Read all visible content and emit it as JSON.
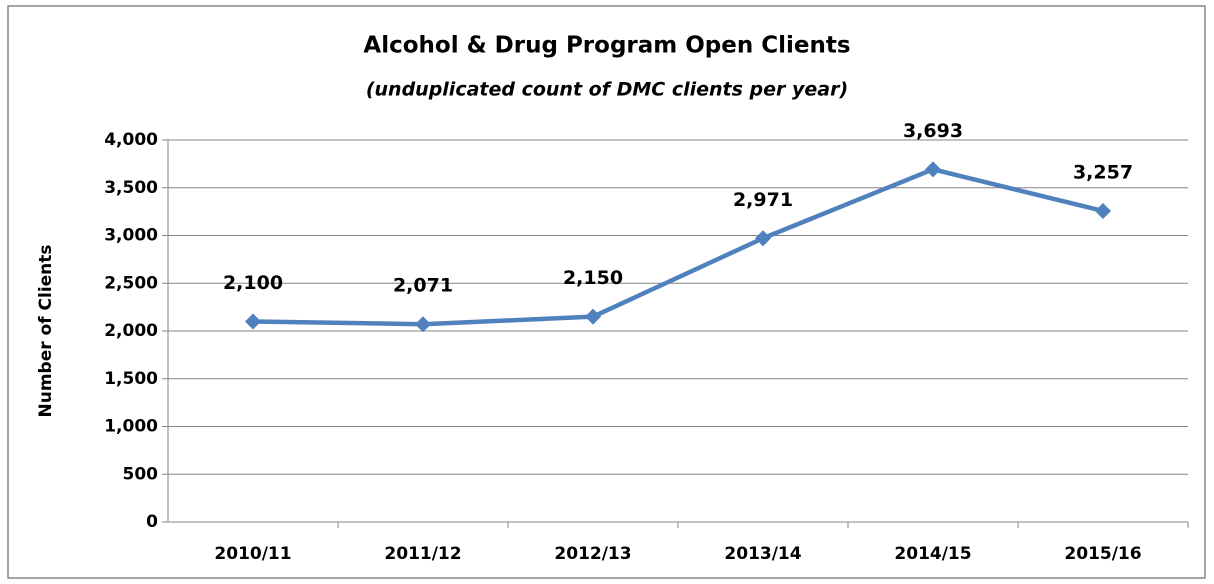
{
  "chart_data": {
    "type": "line",
    "title": "Alcohol & Drug Program Open Clients",
    "subtitle": "(unduplicated count of DMC clients per year)",
    "y_label": "Number of Clients",
    "categories": [
      "2010/11",
      "2011/12",
      "2012/13",
      "2013/14",
      "2014/15",
      "2015/16"
    ],
    "series": [
      {
        "name": "Open Clients",
        "color": "#4f81bd",
        "values": [
          2100,
          2071,
          2150,
          2971,
          3693,
          3257
        ],
        "value_labels": [
          "2,100",
          "2,071",
          "2,150",
          "2,971",
          "3,693",
          "3,257"
        ]
      }
    ],
    "ylim": [
      0,
      4000
    ],
    "yticks": [
      0,
      500,
      {
        "value": 1000,
        "label": "1,000"
      },
      {
        "value": 1500,
        "label": "1,500"
      },
      {
        "value": 2000,
        "label": "2,000"
      },
      {
        "value": 2500,
        "label": "2,500"
      },
      {
        "value": 3000,
        "label": "3,000"
      },
      {
        "value": 3500,
        "label": "3,500"
      },
      {
        "value": 4000,
        "label": "4,000"
      }
    ],
    "grid": true
  }
}
